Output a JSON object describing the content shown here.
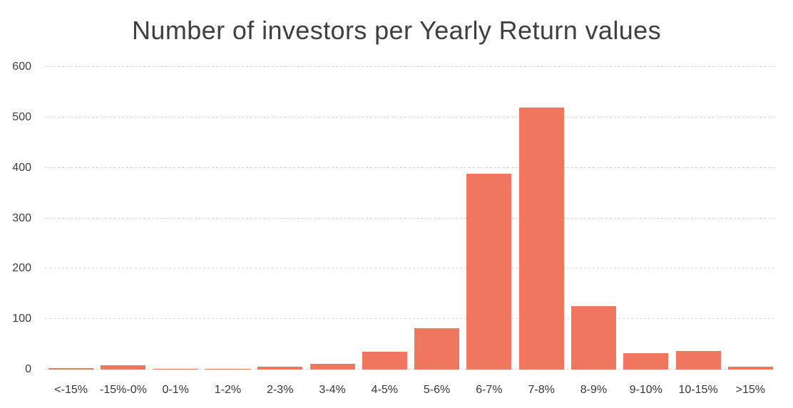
{
  "chart_data": {
    "type": "bar",
    "title": "Number of investors per Yearly Return values",
    "categories": [
      "<-15%",
      "-15%-0%",
      "0-1%",
      "1-2%",
      "2-3%",
      "3-4%",
      "4-5%",
      "5-6%",
      "6-7%",
      "7-8%",
      "8-9%",
      "9-10%",
      "10-15%",
      ">15%"
    ],
    "values": [
      3,
      9,
      2,
      2,
      5,
      12,
      35,
      82,
      388,
      520,
      126,
      32,
      37,
      5
    ],
    "xlabel": "",
    "ylabel": "",
    "ylim": [
      0,
      600
    ],
    "yticks": [
      0,
      100,
      200,
      300,
      400,
      500,
      600
    ],
    "grid": "horizontal-dashed",
    "legend": "none",
    "colors": {
      "bar": "#F0765F",
      "title": "#3F3F3F",
      "axis_labels": "#3C3C3C",
      "gridline": "#D6D6D6",
      "background": "#FFFFFF"
    }
  }
}
